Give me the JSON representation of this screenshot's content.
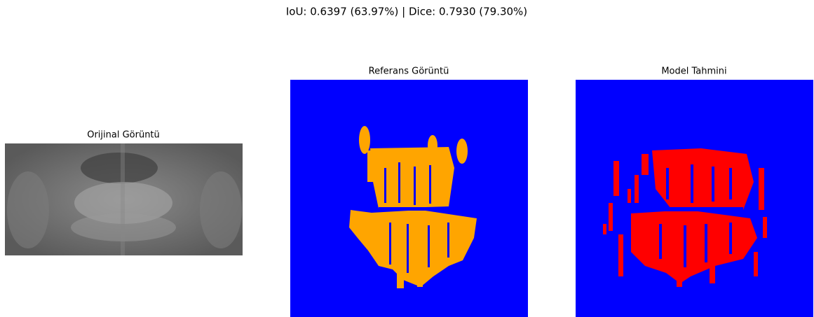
{
  "figure": {
    "title": "IoU: 0.6397 (63.97%) | Dice: 0.7930 (79.30%)",
    "panels": [
      {
        "title": "Orijinal Görüntü"
      },
      {
        "title": "Referans Görüntü"
      },
      {
        "title": "Model Tahmini"
      }
    ]
  }
}
